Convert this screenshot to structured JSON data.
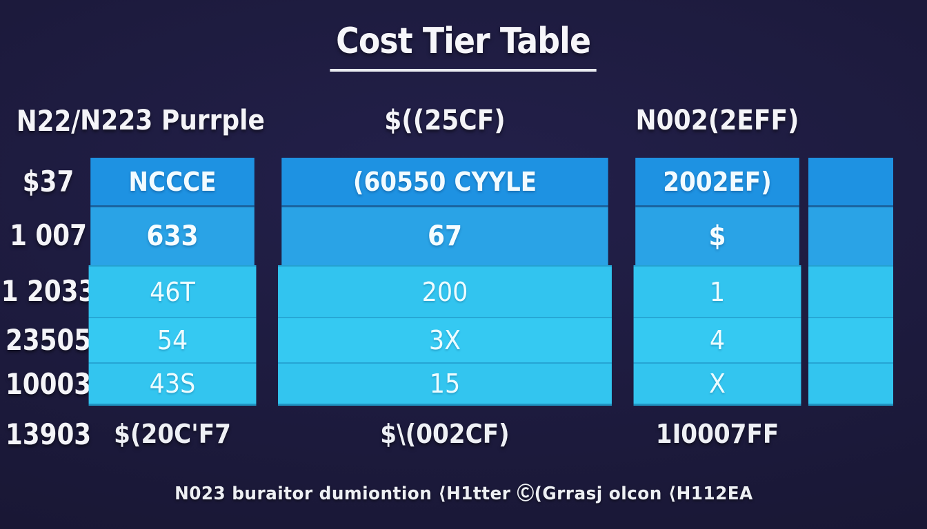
{
  "title": "Cost Tier Table",
  "caption": "N023 buraitor dumiontion ⟨H1tter Ⓒ(Grrasj olcon ⟨H112EA",
  "colors": {
    "background": "#1c1a3c",
    "band_blue": "#1e92e2",
    "row_blue": "#2aa3e6",
    "row_cyan1": "#32c4ef",
    "row_cyan2": "#35c9f2",
    "row_cyan3": "#33c5ef",
    "text": "#ffffff"
  },
  "chart_data": {
    "type": "table",
    "title": "Cost Tier Table",
    "columns": [
      "N22/",
      "N223 Purrple",
      "$((25CF)",
      "N002(2EFF)"
    ],
    "rows": [
      [
        "$37",
        "NCCCE",
        "(60550 CYYLE",
        "2002EF)"
      ],
      [
        "1 007",
        "633",
        "67",
        "$"
      ],
      [
        "1 2033",
        "46T",
        "200",
        "1"
      ],
      [
        "23505",
        "54",
        "3X",
        "4"
      ],
      [
        "10003",
        "43S",
        "15",
        "X"
      ],
      [
        "13903",
        "$(20C'F7",
        "$\\(002CF)",
        "1I0007FF"
      ]
    ],
    "caption": "N023 buraitor dumiontion ⟨H1tter Ⓒ(Grrasj olcon ⟨H112EA",
    "layout": {
      "header_band_row_index": 0,
      "grid": "horizontal-bands",
      "legend": "none"
    }
  }
}
